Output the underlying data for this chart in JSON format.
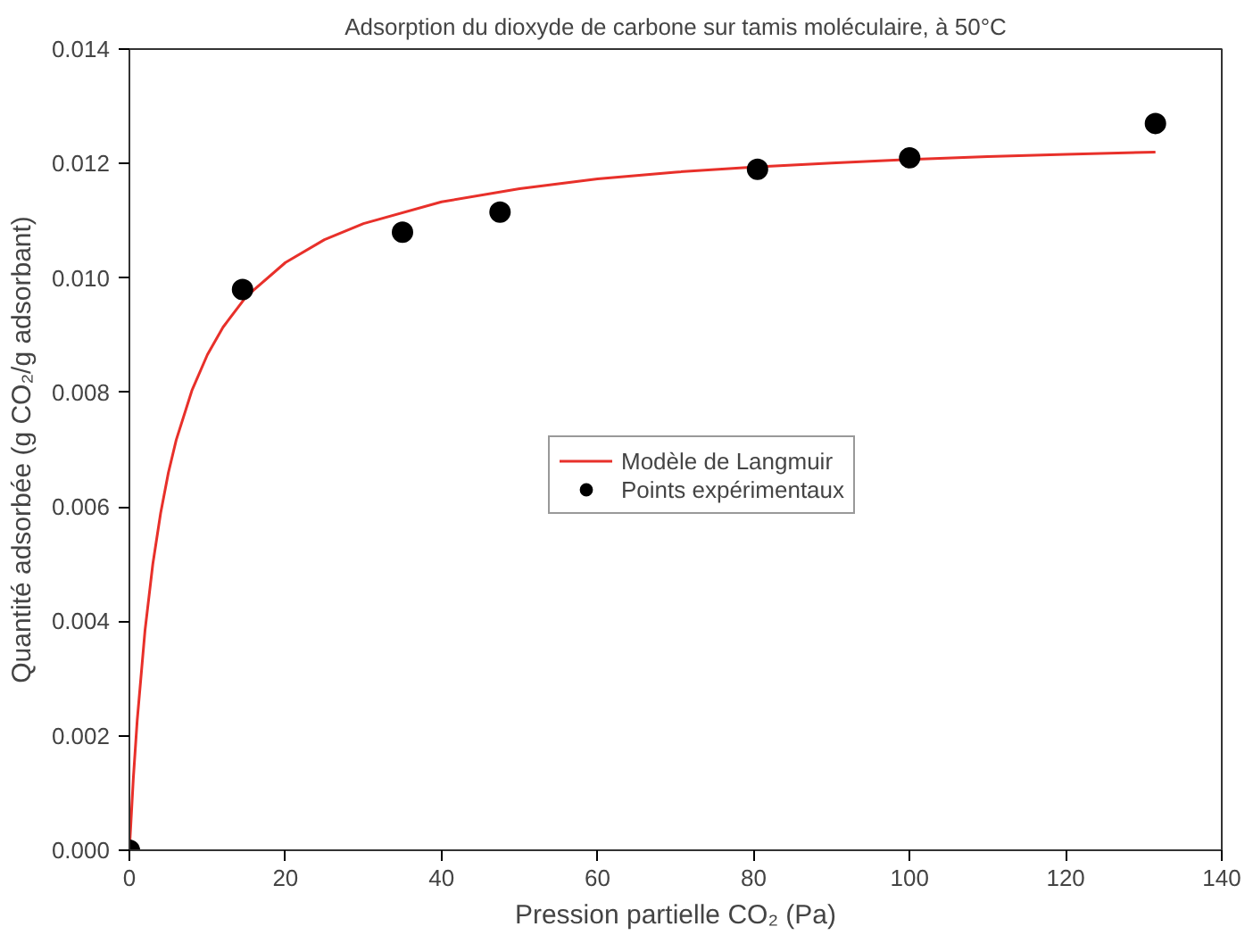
{
  "chart_data": {
    "type": "scatter",
    "title": "Adsorption du dioxyde de carbone sur tamis moléculaire, à 50°C",
    "xlabel": "Pression partielle CO₂ (Pa)",
    "ylabel": "Quantité adsorbée (g CO₂/g adsorbant)",
    "xlim": [
      0,
      140
    ],
    "ylim": [
      0,
      0.014
    ],
    "xticks": [
      0,
      20,
      40,
      60,
      80,
      100,
      120,
      140
    ],
    "yticks": [
      {
        "value": 0,
        "label": "0.000"
      },
      {
        "value": 0.002,
        "label": "0.002"
      },
      {
        "value": 0.004,
        "label": "0.004"
      },
      {
        "value": 0.006,
        "label": "0.006"
      },
      {
        "value": 0.008,
        "label": "0.008"
      },
      {
        "value": 0.01,
        "label": "0.010"
      },
      {
        "value": 0.012,
        "label": "0.012"
      },
      {
        "value": 0.014,
        "label": "0.014"
      }
    ],
    "grid": false,
    "legend": "center",
    "series": [
      {
        "name": "Modèle de Langmuir",
        "type": "line",
        "color": "#e8302a",
        "line_style": "solid",
        "marker": "none",
        "x": [
          0,
          0.5,
          1,
          2,
          3,
          4,
          5,
          6,
          8,
          10,
          12,
          15,
          20,
          25,
          30,
          40,
          50,
          60,
          70,
          80,
          90,
          100,
          110,
          120,
          131.5
        ],
        "values": [
          0,
          0.00125,
          0.00227,
          0.00384,
          0.005,
          0.00589,
          0.0066,
          0.00717,
          0.00803,
          0.00866,
          0.00914,
          0.00968,
          0.01027,
          0.01067,
          0.01095,
          0.01133,
          0.01156,
          0.01173,
          0.01185,
          0.01194,
          0.01201,
          0.01207,
          0.01212,
          0.01216,
          0.0122
        ]
      },
      {
        "name": "Points expérimentaux",
        "color": "#000000",
        "marker": "circle",
        "x": [
          0,
          14.5,
          35,
          47.5,
          80.5,
          100,
          131.5
        ],
        "values": [
          0,
          0.0098,
          0.0108,
          0.01115,
          0.0119,
          0.0121,
          0.0127
        ]
      }
    ]
  }
}
